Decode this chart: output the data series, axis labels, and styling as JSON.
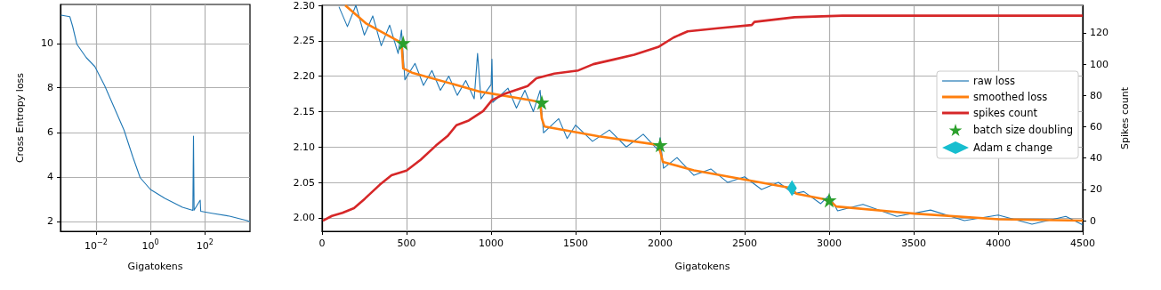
{
  "chart_data": [
    {
      "type": "line",
      "xlabel": "Gigatokens",
      "ylabel": "Cross Entropy loss",
      "log": "x",
      "xlim": [
        0.0005,
        4500
      ],
      "xticks": [
        {
          "value": 0.01,
          "label": "10$^{−2}$"
        },
        {
          "value": 1,
          "label": "10$^{0}$"
        },
        {
          "value": 100,
          "label": "10$^{2}$"
        }
      ],
      "ylim": [
        1.55,
        11.75
      ],
      "yticks": [
        2,
        4,
        6,
        8,
        10
      ],
      "grid": true,
      "legend": false,
      "series": [
        {
          "color": "#1f77b4",
          "marker": "none",
          "x": [
            0.00052,
            0.0011,
            0.0014,
            0.002,
            0.0044,
            0.0091,
            0.021,
            0.045,
            0.108,
            0.226,
            0.42,
            1,
            3.4,
            15,
            36,
            38,
            40,
            67,
            70,
            180,
            800,
            3500,
            4500
          ],
          "values": [
            11.27,
            11.2,
            10.76,
            9.96,
            9.36,
            8.96,
            8.09,
            7.16,
            6.09,
            4.89,
            3.96,
            3.43,
            3.03,
            2.63,
            2.49,
            5.83,
            2.5,
            2.95,
            2.45,
            2.36,
            2.23,
            2.03,
            1.98
          ]
        }
      ]
    },
    {
      "type": "line",
      "xlabel": "Gigatokens",
      "y2label": "Spikes count",
      "xlim": [
        0,
        4500
      ],
      "xticks": [
        0,
        500,
        1000,
        1500,
        2000,
        2500,
        3000,
        3500,
        4000,
        4500
      ],
      "ylim": [
        1.981,
        2.3
      ],
      "yticks": [
        {
          "value": 2,
          "label": "2.00"
        },
        {
          "value": 2.05,
          "label": "2.05"
        },
        {
          "value": 2.1,
          "label": "2.10"
        },
        {
          "value": 2.15,
          "label": "2.15"
        },
        {
          "value": 2.2,
          "label": "2.20"
        },
        {
          "value": 2.25,
          "label": "2.25"
        },
        {
          "value": 2.3,
          "label": "2.30"
        }
      ],
      "y2lim": [
        -6.8,
        137.6
      ],
      "y2ticks": [
        0,
        20,
        40,
        60,
        80,
        100,
        120
      ],
      "grid": true,
      "legend": "right",
      "series": [
        {
          "name": "raw loss",
          "color": "#1f77b4",
          "marker": "none",
          "x": [
            100,
            150,
            200,
            250,
            300,
            350,
            400,
            450,
            470,
            490,
            550,
            600,
            650,
            700,
            750,
            800,
            850,
            900,
            920,
            940,
            1000,
            1005,
            1010,
            1100,
            1150,
            1200,
            1250,
            1290,
            1310,
            1400,
            1450,
            1500,
            1600,
            1700,
            1800,
            1900,
            1990,
            2000,
            2020,
            2100,
            2200,
            2300,
            2400,
            2500,
            2600,
            2700,
            2790,
            2850,
            2950,
            3000,
            3050,
            3200,
            3400,
            3600,
            3800,
            4000,
            4200,
            4400,
            4500
          ],
          "values": [
            2.298,
            2.27,
            2.3,
            2.258,
            2.285,
            2.243,
            2.272,
            2.232,
            2.265,
            2.195,
            2.218,
            2.187,
            2.208,
            2.18,
            2.2,
            2.173,
            2.194,
            2.168,
            2.232,
            2.168,
            2.188,
            2.224,
            2.163,
            2.183,
            2.155,
            2.18,
            2.15,
            2.18,
            2.12,
            2.14,
            2.112,
            2.131,
            2.108,
            2.124,
            2.1,
            2.118,
            2.095,
            2.113,
            2.07,
            2.085,
            2.06,
            2.069,
            2.05,
            2.058,
            2.04,
            2.05,
            2.034,
            2.037,
            2.02,
            2.032,
            2.01,
            2.019,
            2.002,
            2.011,
            1.996,
            2.004,
            1.991,
            2.002,
            1.99
          ]
        },
        {
          "name": "smoothed loss",
          "color": "#ff7f0e",
          "marker": "none",
          "x": [
            137,
            263,
            470,
            480,
            532,
            937,
            1237,
            1290,
            1300,
            1316,
            1637,
            1989,
            2005,
            2016,
            2200,
            2779,
            2805,
            3000,
            3042,
            3505,
            4005,
            4500
          ],
          "values": [
            2.3,
            2.274,
            2.247,
            2.211,
            2.205,
            2.178,
            2.166,
            2.163,
            2.14,
            2.129,
            2.115,
            2.103,
            2.09,
            2.079,
            2.067,
            2.042,
            2.034,
            2.025,
            2.016,
            2.006,
            1.998,
            1.996
          ]
        },
        {
          "name": "spikes count",
          "axis": "y2",
          "color": "#d62728",
          "marker": "none",
          "x": [
            5,
            58,
            121,
            189,
            253,
            342,
            411,
            500,
            584,
            674,
            742,
            795,
            868,
            953,
            1005,
            1079,
            1216,
            1268,
            1374,
            1516,
            1605,
            1726,
            1847,
            1989,
            2079,
            2163,
            2253,
            2342,
            2542,
            2558,
            2795,
            3079,
            4500
          ],
          "values": [
            0,
            3,
            5,
            8,
            14,
            23,
            29,
            32,
            39,
            48,
            54,
            61,
            64,
            70,
            77,
            81,
            86,
            91,
            94,
            96,
            100,
            103,
            106,
            111,
            117,
            121,
            122,
            123,
            125,
            127,
            130,
            131,
            131
          ]
        },
        {
          "name": "batch size doubling",
          "type": "scatter",
          "color": "#2ca02c",
          "marker": "star",
          "x": [
            480,
            1300,
            2000,
            3000
          ],
          "values": [
            2.247,
            2.163,
            2.103,
            2.025
          ]
        },
        {
          "name": "Adam ε change",
          "type": "scatter",
          "color": "#17becf",
          "marker": "diamond",
          "x": [
            2780
          ],
          "values": [
            2.042
          ]
        }
      ]
    }
  ]
}
